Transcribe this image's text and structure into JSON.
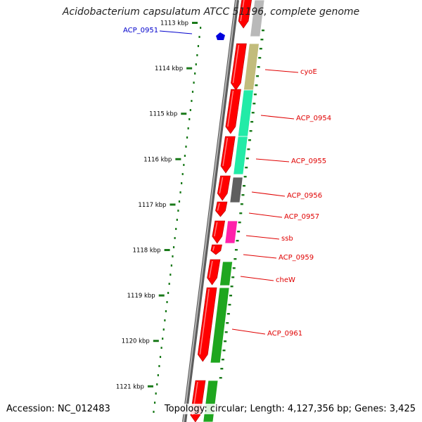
{
  "title": "Acidobacterium capsulatum ATCC 51196, complete genome",
  "footer": {
    "accession": "Accession: NC_012483",
    "topology": "Topology: circular; Length: 4,127,356 bp; Genes: 3,425"
  },
  "colors": {
    "gene_red": "#ff0000",
    "cyoE": "#c2bc7c",
    "teal": "#22eba7",
    "dark_gray": "#5f5f5f",
    "magenta": "#ff22aa",
    "green": "#1fa61f",
    "light_gray": "#b9b9b9",
    "label_red": "#e00000",
    "label_blue": "#0000cc",
    "tick_green": "#1a7a1a",
    "backbone": "#808080"
  },
  "kbp_ticks": [
    "1113 kbp",
    "1114 kbp",
    "1115 kbp",
    "1116 kbp",
    "1117 kbp",
    "1118 kbp",
    "1119 kbp",
    "1120 kbp",
    "1121 kbp"
  ],
  "gene_labels": [
    {
      "name": "ACP_0951",
      "color": "blue"
    },
    {
      "name": "cyoE",
      "color": "red"
    },
    {
      "name": "ACP_0954",
      "color": "red"
    },
    {
      "name": "ACP_0955",
      "color": "red"
    },
    {
      "name": "ACP_0956",
      "color": "red"
    },
    {
      "name": "ACP_0957",
      "color": "red"
    },
    {
      "name": "ssb",
      "color": "red"
    },
    {
      "name": "ACP_0959",
      "color": "red"
    },
    {
      "name": "cheW",
      "color": "red"
    },
    {
      "name": "ACP_0961",
      "color": "red"
    }
  ]
}
